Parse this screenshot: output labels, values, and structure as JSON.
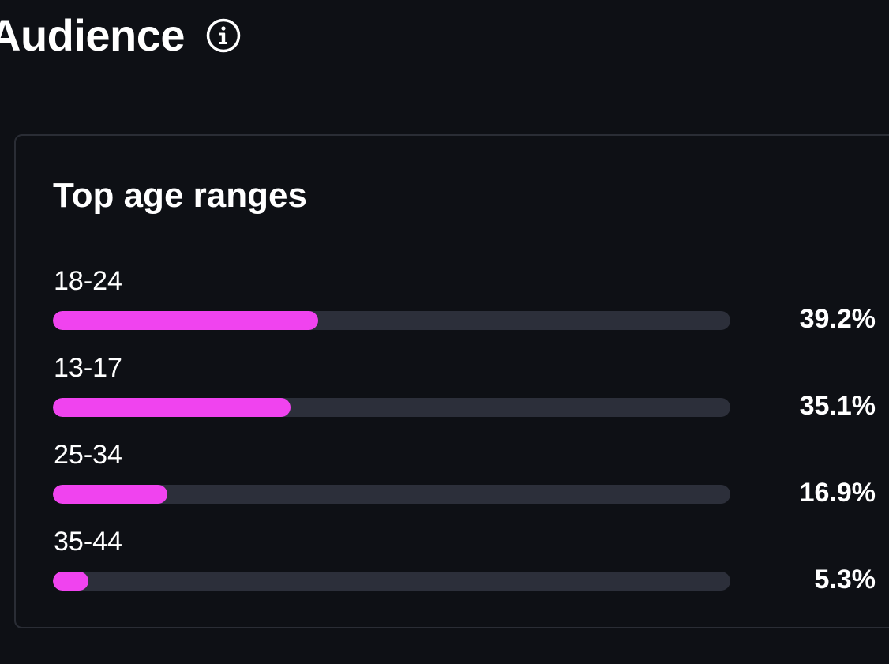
{
  "header": {
    "title": "Audience",
    "info_icon": "info-circle-icon"
  },
  "card": {
    "title": "Top age ranges",
    "accent_color": "#f043ef",
    "track_color": "#2c2f3a",
    "items": [
      {
        "label": "18-24",
        "value_text": "39.2%",
        "percent": 39.2
      },
      {
        "label": "13-17",
        "value_text": "35.1%",
        "percent": 35.1
      },
      {
        "label": "25-34",
        "value_text": "16.9%",
        "percent": 16.9
      },
      {
        "label": "35-44",
        "value_text": "5.3%",
        "percent": 5.3
      }
    ]
  }
}
